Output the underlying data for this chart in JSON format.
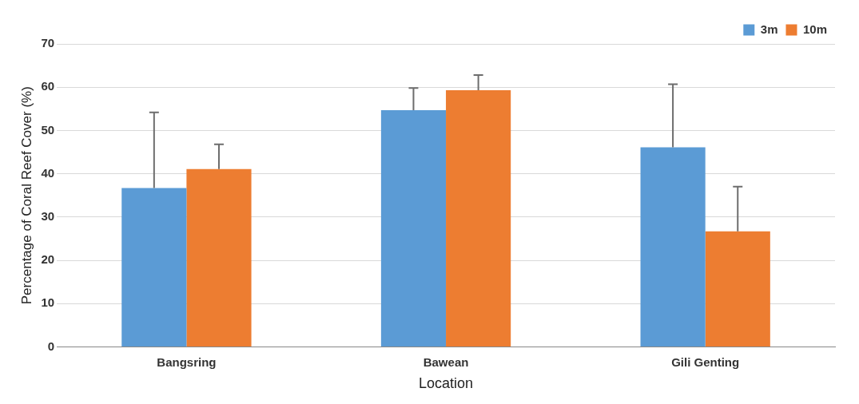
{
  "chart_data": {
    "type": "bar",
    "xlabel": "Location",
    "ylabel": "Percentage of Coral Reef Cover (%)",
    "categories": [
      "Bangsring",
      "Bawean",
      "Gili Genting"
    ],
    "series": [
      {
        "name": "3m",
        "color": "#5b9bd5",
        "values": [
          36.7,
          54.7,
          46.1
        ],
        "errors": [
          [
            36.7,
            54.2
          ],
          [
            54.7,
            59.8
          ],
          [
            46.1,
            60.7
          ]
        ]
      },
      {
        "name": "10m",
        "color": "#ed7d31",
        "values": [
          41.1,
          59.3,
          26.7
        ],
        "errors": [
          [
            41.1,
            46.8
          ],
          [
            59.3,
            62.8
          ],
          [
            26.7,
            37.0
          ]
        ]
      }
    ],
    "ylim": [
      0,
      70
    ],
    "yticks": [
      0,
      10,
      20,
      30,
      40,
      50,
      60,
      70
    ],
    "grid": "y",
    "legend": "top right"
  }
}
